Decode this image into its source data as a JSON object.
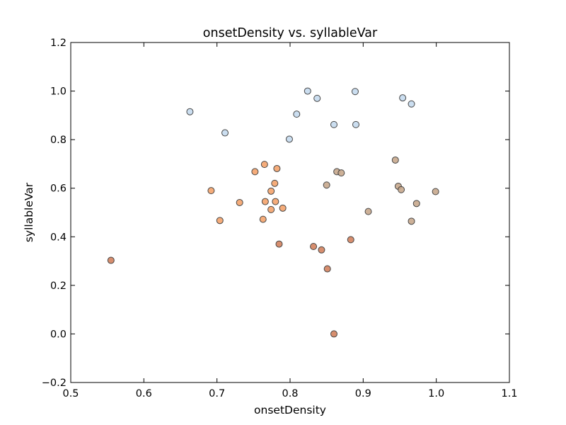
{
  "chart_data": {
    "type": "scatter",
    "title": "onsetDensity vs. syllableVar",
    "xlabel": "onsetDensity",
    "ylabel": "syllableVar",
    "xlim": [
      0.5,
      1.1
    ],
    "ylim": [
      -0.2,
      1.2
    ],
    "x_ticks": [
      0.5,
      0.6,
      0.7,
      0.8,
      0.9,
      1.0,
      1.1
    ],
    "x_tick_labels": [
      "0.5",
      "0.6",
      "0.7",
      "0.8",
      "0.9",
      "1.0",
      "1.1"
    ],
    "y_ticks": [
      -0.2,
      0.0,
      0.2,
      0.4,
      0.6,
      0.8,
      1.0,
      1.2
    ],
    "y_tick_labels": [
      "−0.2",
      "0.0",
      "0.2",
      "0.4",
      "0.6",
      "0.8",
      "1.0",
      "1.2"
    ],
    "grid": false,
    "legend": "none",
    "series": [
      {
        "color": "#c6dbef",
        "points": [
          [
            0.663,
            0.915
          ],
          [
            0.711,
            0.828
          ],
          [
            0.799,
            0.802
          ],
          [
            0.809,
            0.905
          ],
          [
            0.824,
            1.0
          ],
          [
            0.837,
            0.97
          ],
          [
            0.86,
            0.862
          ],
          [
            0.889,
            0.998
          ],
          [
            0.89,
            0.862
          ],
          [
            0.954,
            0.972
          ],
          [
            0.966,
            0.947
          ]
        ]
      },
      {
        "color": "#f4a46c",
        "points": [
          [
            0.692,
            0.59
          ],
          [
            0.704,
            0.467
          ],
          [
            0.731,
            0.541
          ],
          [
            0.752,
            0.668
          ],
          [
            0.763,
            0.472
          ],
          [
            0.765,
            0.698
          ],
          [
            0.766,
            0.545
          ],
          [
            0.774,
            0.588
          ],
          [
            0.774,
            0.512
          ],
          [
            0.779,
            0.62
          ],
          [
            0.78,
            0.545
          ],
          [
            0.782,
            0.681
          ],
          [
            0.79,
            0.518
          ]
        ]
      },
      {
        "color": "#c8a98d",
        "points": [
          [
            0.85,
            0.613
          ],
          [
            0.864,
            0.668
          ],
          [
            0.87,
            0.663
          ],
          [
            0.907,
            0.504
          ],
          [
            0.944,
            0.716
          ],
          [
            0.948,
            0.608
          ],
          [
            0.952,
            0.594
          ],
          [
            0.966,
            0.464
          ],
          [
            0.973,
            0.537
          ],
          [
            0.999,
            0.586
          ]
        ]
      },
      {
        "color": "#d3825f",
        "points": [
          [
            0.555,
            0.303
          ],
          [
            0.785,
            0.37
          ],
          [
            0.832,
            0.36
          ],
          [
            0.843,
            0.346
          ],
          [
            0.851,
            0.268
          ],
          [
            0.86,
            0.0
          ],
          [
            0.883,
            0.388
          ]
        ]
      }
    ]
  }
}
